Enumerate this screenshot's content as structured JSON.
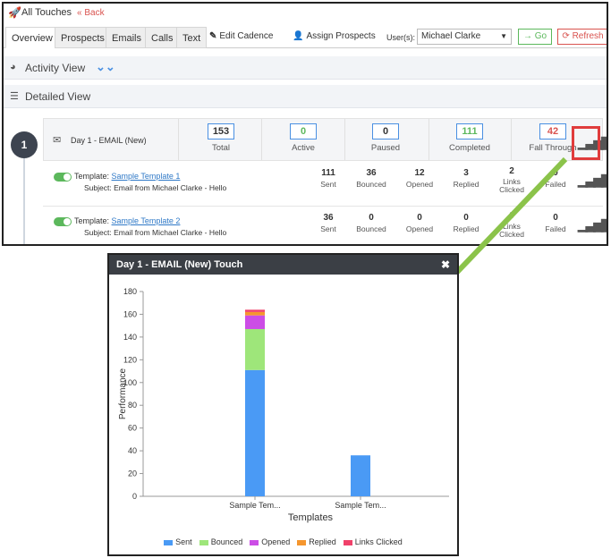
{
  "header": {
    "title": "All Touches",
    "back_label": "« Back"
  },
  "tabs": [
    "Overview",
    "Prospects",
    "Emails",
    "Calls",
    "Text"
  ],
  "actions": {
    "edit_cadence": "Edit Cadence",
    "assign_prospects": "Assign Prospects"
  },
  "users": {
    "label": "User(s):",
    "selected": "Michael Clarke",
    "go_label": "→ Go",
    "refresh_label": "Refresh"
  },
  "sections": {
    "activity_view": "Activity View",
    "detailed_view": "Detailed View"
  },
  "touch": {
    "step_number": "1",
    "title": "Day 1 - EMAIL (New)",
    "stats": [
      {
        "value": "153",
        "label": "Total",
        "color": "#333333"
      },
      {
        "value": "0",
        "label": "Active",
        "color": "#5cb85c"
      },
      {
        "value": "0",
        "label": "Paused",
        "color": "#333333"
      },
      {
        "value": "111",
        "label": "Completed",
        "color": "#5cb85c"
      },
      {
        "value": "42",
        "label": "Fall Through",
        "color": "#d9534f"
      }
    ]
  },
  "templates": [
    {
      "template_prefix": "Template:",
      "name": "Sample Template 1",
      "subject": "Subject: Email from Michael Clarke - Hello",
      "metrics": [
        {
          "value": "111",
          "label": "Sent"
        },
        {
          "value": "36",
          "label": "Bounced"
        },
        {
          "value": "12",
          "label": "Opened"
        },
        {
          "value": "3",
          "label": "Replied"
        },
        {
          "value": "2",
          "label": "Links Clicked"
        },
        {
          "value": "0",
          "label": "Failed"
        }
      ]
    },
    {
      "template_prefix": "Template:",
      "name": "Sample Template 2",
      "subject": "Subject: Email from Michael Clarke - Hello",
      "metrics": [
        {
          "value": "36",
          "label": "Sent"
        },
        {
          "value": "0",
          "label": "Bounced"
        },
        {
          "value": "0",
          "label": "Opened"
        },
        {
          "value": "0",
          "label": "Replied"
        },
        {
          "value": "0",
          "label": "Links Clicked"
        },
        {
          "value": "0",
          "label": "Failed"
        }
      ]
    }
  ],
  "popup": {
    "title": "Day 1 - EMAIL (New) Touch",
    "close_label": "✖"
  },
  "colors": {
    "accent": "#4a90e2",
    "highlight": "#e03c3c",
    "arrow": "#8bc34a"
  },
  "chart_data": {
    "type": "bar",
    "stacked": true,
    "categories": [
      "Sample Tem...",
      "Sample Tem..."
    ],
    "series": [
      {
        "name": "Sent",
        "values": [
          111,
          36
        ],
        "color": "#4a9af5"
      },
      {
        "name": "Bounced",
        "values": [
          36,
          0
        ],
        "color": "#9ee67a"
      },
      {
        "name": "Opened",
        "values": [
          12,
          0
        ],
        "color": "#cc4de6"
      },
      {
        "name": "Replied",
        "values": [
          3,
          0
        ],
        "color": "#f5962e"
      },
      {
        "name": "Links Clicked",
        "values": [
          2,
          0
        ],
        "color": "#f0416a"
      }
    ],
    "xlabel": "Templates",
    "ylabel": "Performance",
    "ylim": [
      0,
      180
    ],
    "yticks": [
      0,
      20,
      40,
      60,
      80,
      100,
      120,
      140,
      160,
      180
    ],
    "legend_position": "bottom",
    "grid": false
  }
}
